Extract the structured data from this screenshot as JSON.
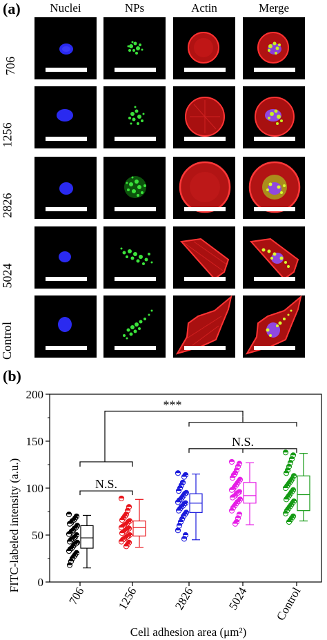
{
  "panel_a": {
    "label": "(a)",
    "columns": [
      "Nuclei",
      "NPs",
      "Actin",
      "Merge"
    ],
    "rows": [
      "706",
      "1256",
      "2826",
      "5024",
      "Control"
    ]
  },
  "panel_b": {
    "label": "(b)"
  },
  "chart_data": {
    "type": "scatter",
    "title": "",
    "xlabel": "Cell adhesion area (μm²)",
    "ylabel": "FITC-labeled intensity (a.u.)",
    "ylim": [
      0,
      200
    ],
    "yticks": [
      0,
      50,
      100,
      150,
      200
    ],
    "categories": [
      "706",
      "1256",
      "2826",
      "5024",
      "Control"
    ],
    "colors": [
      "#000000",
      "#e8141b",
      "#1a1adc",
      "#e61ee6",
      "#139a13"
    ],
    "boxes": [
      {
        "category": "706",
        "min": 15,
        "q1": 36,
        "median": 47,
        "q3": 60,
        "max": 71
      },
      {
        "category": "1256",
        "min": 37,
        "q1": 49,
        "median": 58,
        "q3": 65,
        "max": 88
      },
      {
        "category": "2826",
        "min": 45,
        "q1": 74,
        "median": 84,
        "q3": 94,
        "max": 115
      },
      {
        "category": "5024",
        "min": 61,
        "q1": 84,
        "median": 92,
        "q3": 106,
        "max": 127
      },
      {
        "category": "Control",
        "min": 65,
        "q1": 76,
        "median": 93,
        "q3": 113,
        "max": 137
      }
    ],
    "points": [
      {
        "category": "706",
        "values": [
          72,
          70,
          68,
          66,
          65,
          63,
          62,
          60,
          58,
          57,
          55,
          54,
          52,
          51,
          50,
          48,
          47,
          46,
          45,
          43,
          42,
          41,
          40,
          38,
          36,
          35,
          33,
          31,
          29,
          27,
          25,
          22,
          18
        ]
      },
      {
        "category": "1256",
        "values": [
          89,
          80,
          76,
          72,
          70,
          68,
          66,
          65,
          64,
          62,
          61,
          60,
          59,
          58,
          57,
          56,
          55,
          54,
          53,
          52,
          50,
          49,
          48,
          47,
          46,
          45,
          43,
          42,
          40,
          38
        ]
      },
      {
        "category": "2826",
        "values": [
          116,
          114,
          112,
          106,
          103,
          100,
          97,
          95,
          94,
          92,
          90,
          88,
          87,
          85,
          84,
          83,
          81,
          80,
          78,
          76,
          74,
          72,
          70,
          67,
          64,
          60,
          55,
          50,
          46
        ]
      },
      {
        "category": "5024",
        "values": [
          128,
          126,
          123,
          119,
          116,
          114,
          111,
          109,
          107,
          105,
          103,
          101,
          99,
          98,
          96,
          95,
          94,
          92,
          91,
          90,
          88,
          86,
          85,
          83,
          81,
          79,
          76,
          72,
          68,
          64,
          62
        ]
      },
      {
        "category": "Control",
        "values": [
          138,
          135,
          131,
          127,
          123,
          119,
          116,
          113,
          110,
          108,
          106,
          104,
          102,
          100,
          98,
          96,
          94,
          92,
          90,
          88,
          86,
          84,
          82,
          80,
          78,
          76,
          73,
          70,
          68,
          66,
          64
        ]
      }
    ],
    "annotations": [
      {
        "text": "***",
        "between": [
          "706,1256",
          "2826,5024,Control"
        ]
      },
      {
        "text": "N.S.",
        "between": [
          "706",
          "1256"
        ]
      },
      {
        "text": "N.S.",
        "between": [
          "2826",
          "5024",
          "Control"
        ]
      }
    ]
  }
}
